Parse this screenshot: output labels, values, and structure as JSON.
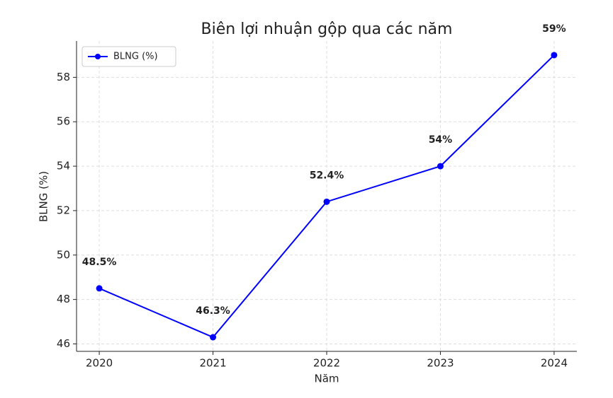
{
  "chart_data": {
    "type": "line",
    "title": "Biên lợi nhuận gộp qua các năm",
    "x_label": "Năm",
    "y_label": "BLNG (%)",
    "categories": [
      "2020",
      "2021",
      "2022",
      "2023",
      "2024"
    ],
    "series": [
      {
        "name": "BLNG (%)",
        "color": "#0000ff",
        "values": [
          48.5,
          46.3,
          52.4,
          54,
          59
        ],
        "value_labels": [
          "48.5%",
          "46.3%",
          "52.4%",
          "54%",
          "59%"
        ]
      }
    ],
    "ylim": [
      45.665,
      59.635
    ],
    "yticks": [
      46,
      48,
      50,
      52,
      54,
      56,
      58
    ],
    "grid": true,
    "legend": "upper left"
  }
}
